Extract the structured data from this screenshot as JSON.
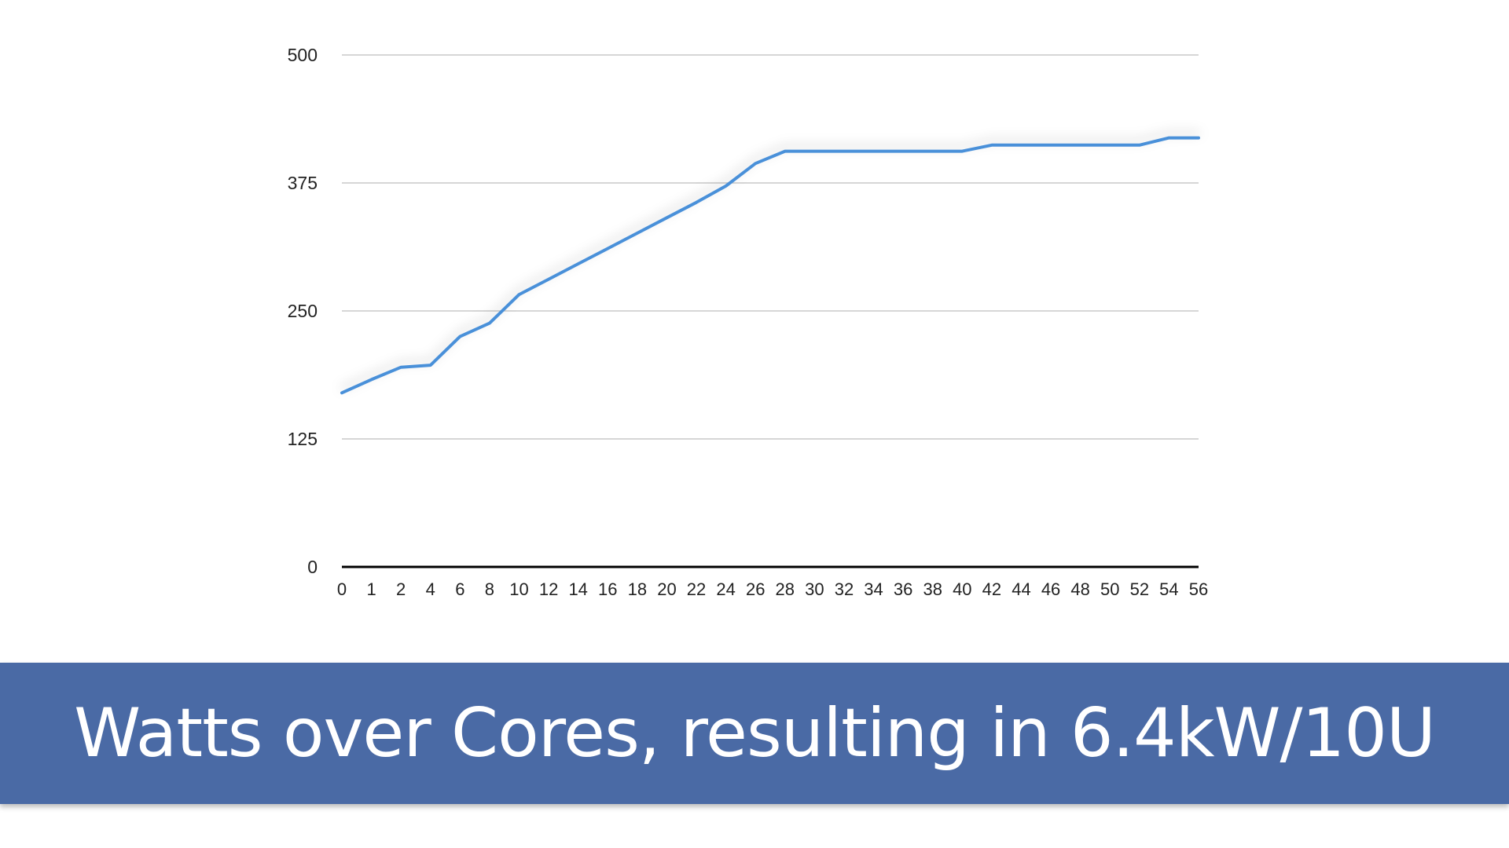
{
  "caption": "Watts over Cores, resulting in 6.4kW/10U",
  "colors": {
    "line": "#4a90d9",
    "grid": "#c8c8c8",
    "axis": "#000000",
    "banner": "#4a6aa5"
  },
  "chart_data": {
    "type": "line",
    "title": "",
    "xlabel": "",
    "ylabel": "",
    "categories": [
      "0",
      "1",
      "2",
      "4",
      "6",
      "8",
      "10",
      "12",
      "14",
      "16",
      "18",
      "20",
      "22",
      "24",
      "26",
      "28",
      "30",
      "32",
      "34",
      "36",
      "38",
      "40",
      "42",
      "44",
      "46",
      "48",
      "50",
      "52",
      "54",
      "56"
    ],
    "series": [
      {
        "values": [
          170,
          183,
          195,
          197,
          225,
          238,
          266,
          281,
          296,
          311,
          326,
          341,
          356,
          372,
          394,
          406,
          406,
          406,
          406,
          406,
          406,
          406,
          412,
          412,
          412,
          412,
          412,
          412,
          419,
          419
        ]
      }
    ],
    "ylim": [
      0,
      500
    ],
    "yticks": [
      "0",
      "125",
      "250",
      "375",
      "500"
    ],
    "grid": true,
    "legend": "none"
  }
}
